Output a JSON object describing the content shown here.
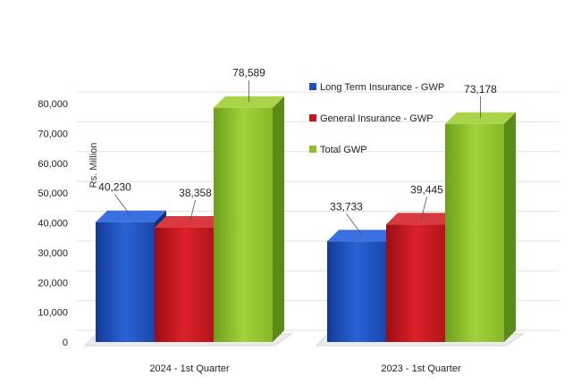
{
  "chart_data": {
    "type": "bar",
    "ylabel": "Rs. Million",
    "ylim": [
      0,
      80000
    ],
    "yticks": [
      0,
      10000,
      20000,
      30000,
      40000,
      50000,
      60000,
      70000,
      80000
    ],
    "ytick_labels": [
      "0",
      "10,000",
      "20,000",
      "30,000",
      "40,000",
      "50,000",
      "60,000",
      "70,000",
      "80,000"
    ],
    "grid": true,
    "legend_position": "top-center",
    "categories": [
      "2024 - 1st  Quarter",
      "2023 - 1st  Quarter"
    ],
    "series": [
      {
        "name": "Long Term Insurance - GWP",
        "values": [
          40230,
          33733
        ],
        "labels": [
          "40,230",
          "33,733"
        ],
        "color": "#1f4fbf"
      },
      {
        "name": "General Insurance - GWP",
        "values": [
          38358,
          39445
        ],
        "labels": [
          "38,358",
          "39,445"
        ],
        "color": "#c4141c"
      },
      {
        "name": "Total GWP",
        "values": [
          78589,
          73178
        ],
        "labels": [
          "78,589",
          "73,178"
        ],
        "color": "#8cbf2a"
      }
    ]
  }
}
